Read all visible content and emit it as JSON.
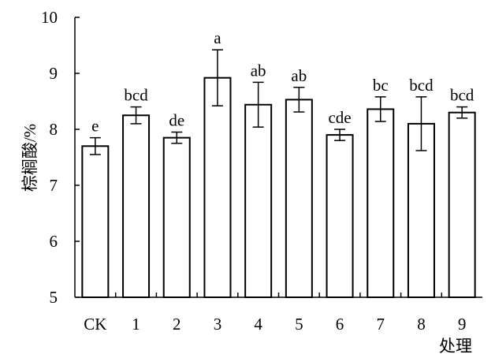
{
  "chart_data": {
    "type": "bar",
    "title": "",
    "xlabel": "处理",
    "ylabel": "棕榈酸/%",
    "ylim": [
      5,
      10
    ],
    "yticks": [
      "5",
      "6",
      "7",
      "8",
      "9",
      "10"
    ],
    "categories": [
      "CK",
      "1",
      "2",
      "3",
      "4",
      "5",
      "6",
      "7",
      "8",
      "9"
    ],
    "series": [
      {
        "values": [
          7.7,
          8.25,
          7.85,
          8.92,
          8.44,
          8.53,
          7.9,
          8.36,
          8.1,
          8.3
        ],
        "errors": [
          0.15,
          0.15,
          0.1,
          0.5,
          0.4,
          0.22,
          0.1,
          0.22,
          0.48,
          0.1
        ],
        "significance": [
          "e",
          "bcd",
          "de",
          "a",
          "ab",
          "ab",
          "cde",
          "bc",
          "bcd",
          "bcd"
        ]
      }
    ],
    "grid": false,
    "legend": "none",
    "colors": {
      "bar_fill": "#ffffff",
      "bar_stroke": "#000000",
      "axis": "#000000"
    }
  }
}
